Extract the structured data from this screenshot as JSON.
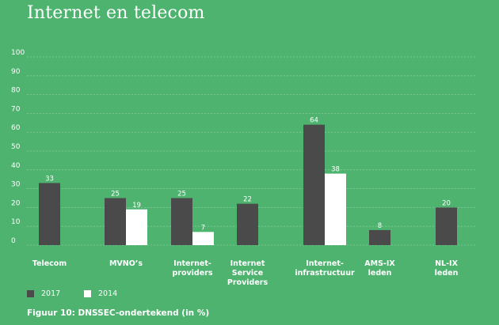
{
  "title": "Internet en telecom",
  "caption": "Figuur 10: DNSSEC-ondertekend (in %)",
  "colors": {
    "background": "#4db36f",
    "series_2017": "#4a4a4a",
    "series_2014": "#ffffff",
    "grid": "#86cc9c"
  },
  "chart_data": {
    "type": "bar",
    "title": "",
    "xlabel": "",
    "ylabel": "",
    "ylim": [
      0,
      100
    ],
    "yticks": [
      0,
      10,
      20,
      30,
      40,
      50,
      60,
      70,
      80,
      90,
      100
    ],
    "grid": true,
    "legend_position": "bottom-left",
    "categories": [
      "Telecom",
      "MVNO’s",
      "Internet-\nproviders",
      "Internet\nService\nProviders",
      "Internet-\ninfrastructuur",
      "AMS-IX\nleden",
      "NL-IX\nleden"
    ],
    "series": [
      {
        "name": "2017",
        "color": "#4a4a4a",
        "values": [
          33,
          25,
          25,
          22,
          64,
          8,
          20
        ]
      },
      {
        "name": "2014",
        "color": "#ffffff",
        "values": [
          null,
          19,
          7,
          null,
          38,
          null,
          null
        ]
      }
    ]
  }
}
